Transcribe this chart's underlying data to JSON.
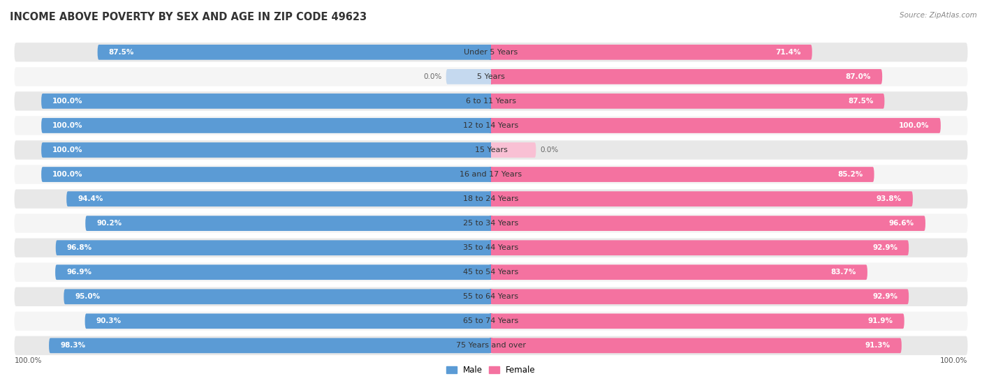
{
  "title": "INCOME ABOVE POVERTY BY SEX AND AGE IN ZIP CODE 49623",
  "source": "Source: ZipAtlas.com",
  "categories": [
    "Under 5 Years",
    "5 Years",
    "6 to 11 Years",
    "12 to 14 Years",
    "15 Years",
    "16 and 17 Years",
    "18 to 24 Years",
    "25 to 34 Years",
    "35 to 44 Years",
    "45 to 54 Years",
    "55 to 64 Years",
    "65 to 74 Years",
    "75 Years and over"
  ],
  "male_values": [
    87.5,
    0.0,
    100.0,
    100.0,
    100.0,
    100.0,
    94.4,
    90.2,
    96.8,
    96.9,
    95.0,
    90.3,
    98.3
  ],
  "female_values": [
    71.4,
    87.0,
    87.5,
    100.0,
    0.0,
    85.2,
    93.8,
    96.6,
    92.9,
    83.7,
    92.9,
    91.9,
    91.3
  ],
  "male_color": "#5b9bd5",
  "female_color": "#f472a0",
  "male_color_zero": "#c5d9ef",
  "female_color_zero": "#f9c0d4",
  "row_bg": "#e8e8e8",
  "row_bg_alt": "#f5f5f5",
  "max_value": 100.0,
  "title_fontsize": 10.5,
  "label_fontsize": 8.0,
  "value_fontsize": 7.5,
  "source_fontsize": 7.5,
  "legend_male": "Male",
  "legend_female": "Female",
  "zero_bar_width": 10.0
}
